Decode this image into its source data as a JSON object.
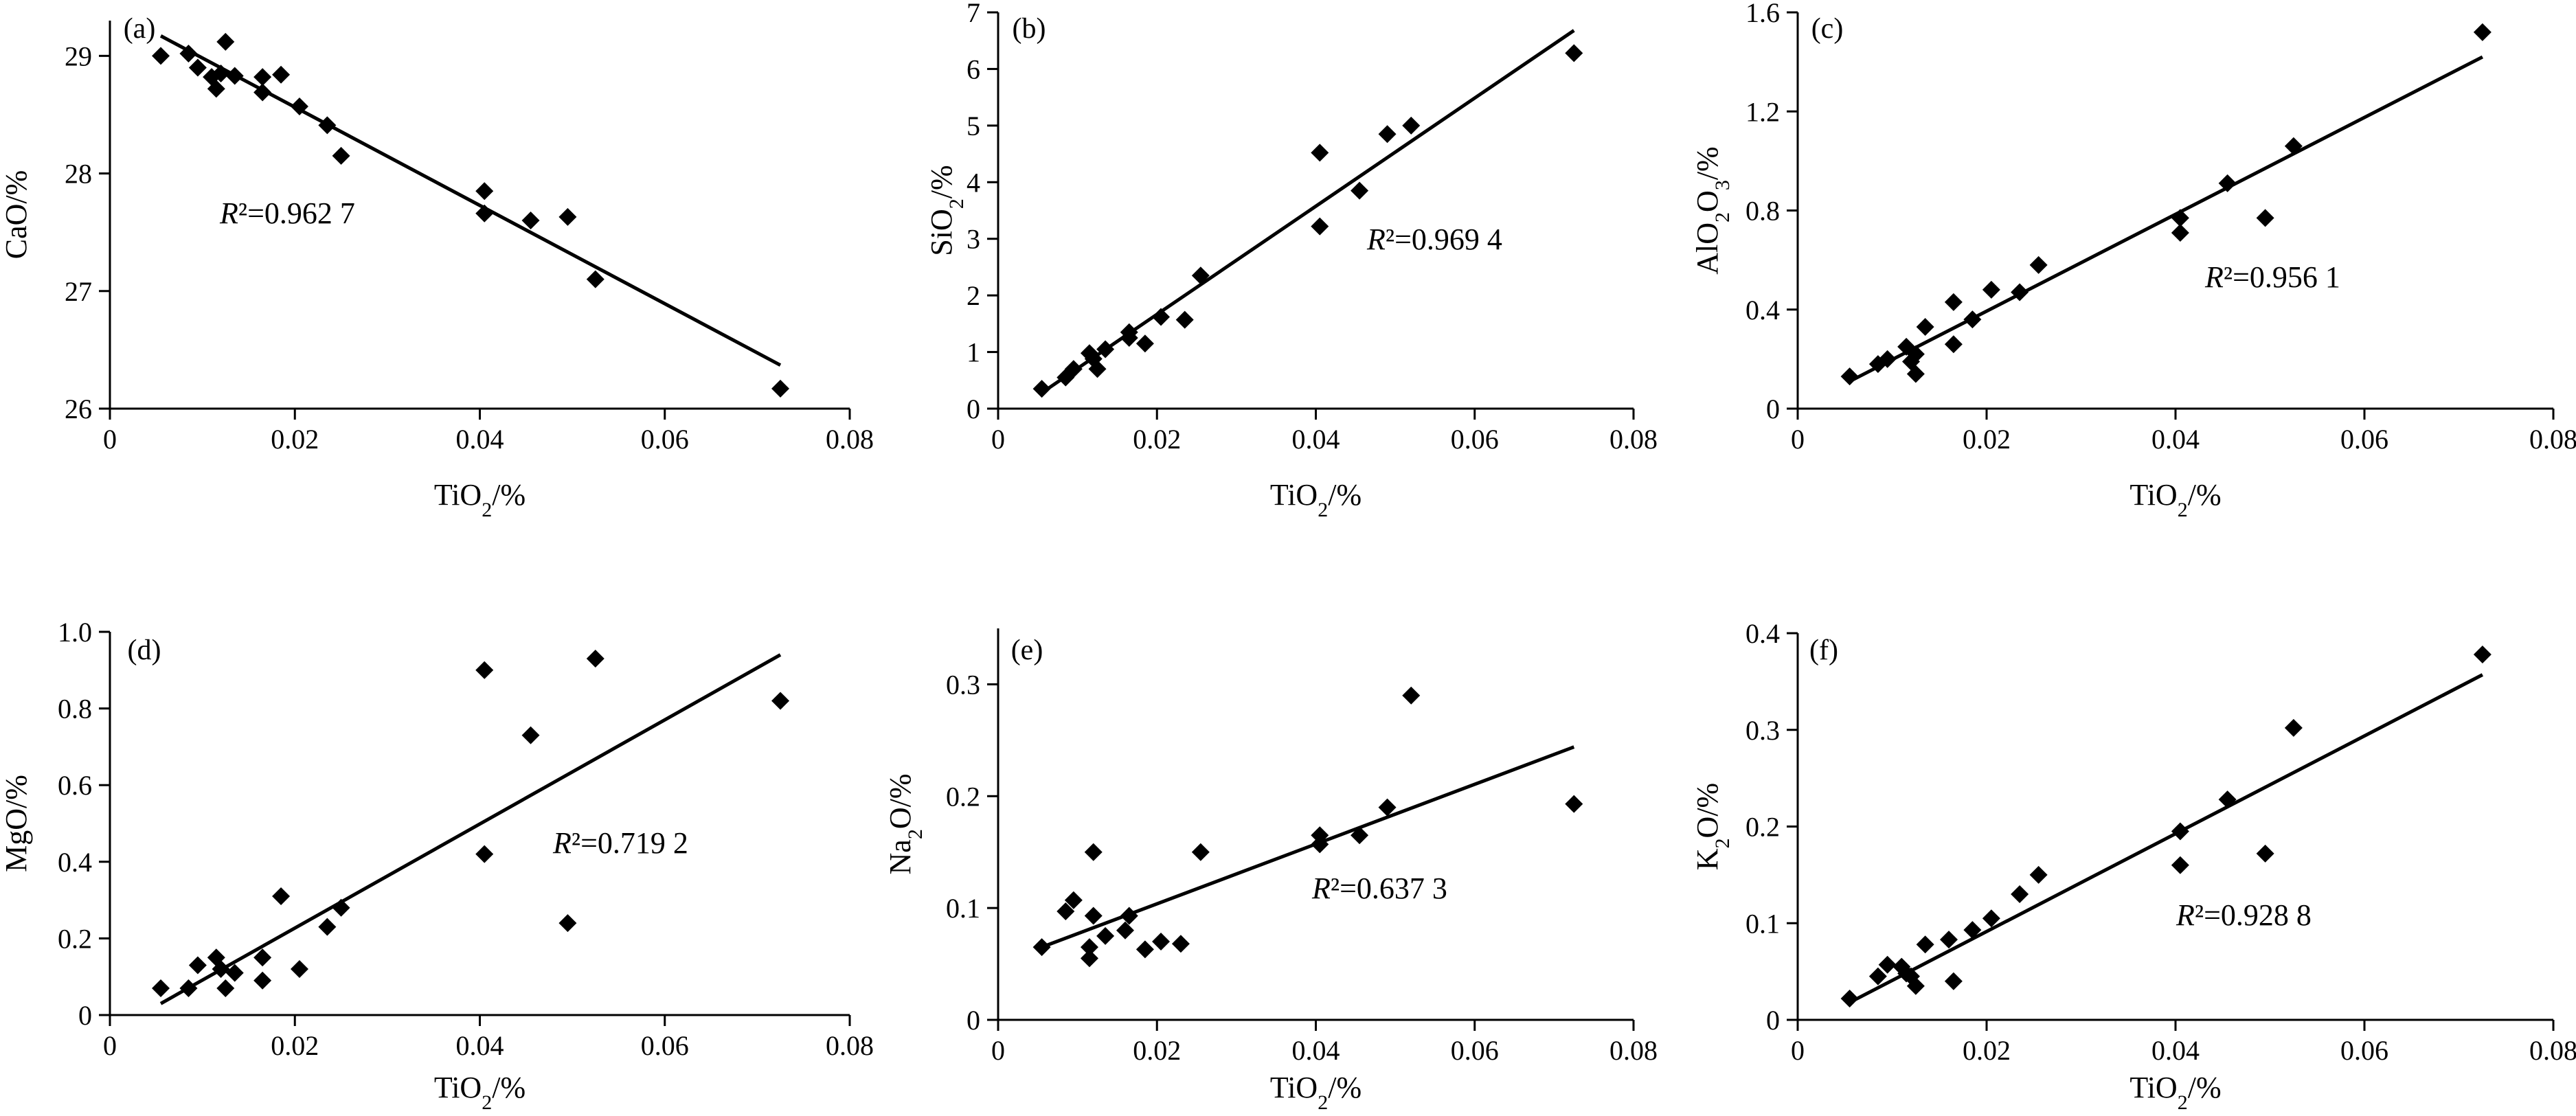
{
  "figure": {
    "panels": [
      {
        "id": "a",
        "label": "(a)",
        "ylabel_main": "CaO/%",
        "ylabel_sub": "",
        "ylabel_tail": "",
        "xlabel_main": "TiO",
        "xlabel_sub": "2",
        "xlabel_tail": "/%",
        "r2_label": "R²=0.962 7"
      },
      {
        "id": "b",
        "label": "(b)",
        "ylabel_main": "SiO",
        "ylabel_sub": "2",
        "ylabel_tail": "/%",
        "xlabel_main": "TiO",
        "xlabel_sub": "2",
        "xlabel_tail": "/%",
        "r2_label": "R²=0.969 4"
      },
      {
        "id": "c",
        "label": "(c)",
        "ylabel_main": "AlO",
        "ylabel_sub": "2",
        "ylabel_tail": "O",
        "ylabel_sub2": "3",
        "ylabel_tail2": "/%",
        "xlabel_main": "TiO",
        "xlabel_sub": "2",
        "xlabel_tail": "/%",
        "r2_label": "R²=0.956 1"
      },
      {
        "id": "d",
        "label": "(d)",
        "ylabel_main": "MgO/%",
        "ylabel_sub": "",
        "ylabel_tail": "",
        "xlabel_main": "TiO",
        "xlabel_sub": "2",
        "xlabel_tail": "/%",
        "r2_label": "R²=0.719 2"
      },
      {
        "id": "e",
        "label": "(e)",
        "ylabel_main": "Na",
        "ylabel_sub": "2",
        "ylabel_tail": "O/%",
        "xlabel_main": "TiO",
        "xlabel_sub": "2",
        "xlabel_tail": "/%",
        "r2_label": "R²=0.637 3"
      },
      {
        "id": "f",
        "label": "(f)",
        "ylabel_main": "K",
        "ylabel_sub": "2",
        "ylabel_tail": "O/%",
        "xlabel_main": "TiO",
        "xlabel_sub": "2",
        "xlabel_tail": "/%",
        "r2_label": "R²=0.928 8"
      }
    ]
  },
  "chart_data": [
    {
      "type": "scatter",
      "panel": "(a)",
      "xlabel": "TiO2/%",
      "ylabel": "CaO/%",
      "xlim": [
        0,
        0.08
      ],
      "ylim": [
        26,
        29.3
      ],
      "xticks": [
        0,
        0.02,
        0.04,
        0.06,
        0.08
      ],
      "xtick_labels": [
        "0",
        "0.02",
        "0.04",
        "0.06",
        "0.08"
      ],
      "yticks": [
        26,
        27,
        28,
        29
      ],
      "ytick_labels": [
        "26",
        "27",
        "28",
        "29"
      ],
      "annotation": "R²=0.962 7",
      "fit_line": [
        [
          0.0055,
          29.17
        ],
        [
          0.0725,
          26.37
        ]
      ],
      "points": [
        [
          0.0055,
          29.0
        ],
        [
          0.0085,
          29.02
        ],
        [
          0.0095,
          28.9
        ],
        [
          0.011,
          28.82
        ],
        [
          0.0115,
          28.72
        ],
        [
          0.012,
          28.85
        ],
        [
          0.0125,
          29.12
        ],
        [
          0.0135,
          28.83
        ],
        [
          0.0165,
          28.82
        ],
        [
          0.0165,
          28.69
        ],
        [
          0.0185,
          28.84
        ],
        [
          0.0205,
          28.57
        ],
        [
          0.0235,
          28.41
        ],
        [
          0.025,
          28.15
        ],
        [
          0.0405,
          27.85
        ],
        [
          0.0405,
          27.66
        ],
        [
          0.0455,
          27.6
        ],
        [
          0.0495,
          27.63
        ],
        [
          0.0525,
          27.1
        ],
        [
          0.0725,
          26.17
        ]
      ]
    },
    {
      "type": "scatter",
      "panel": "(b)",
      "xlabel": "TiO2/%",
      "ylabel": "SiO2/%",
      "xlim": [
        0,
        0.08
      ],
      "ylim": [
        0,
        7
      ],
      "xticks": [
        0,
        0.02,
        0.04,
        0.06,
        0.08
      ],
      "xtick_labels": [
        "0",
        "0.02",
        "0.04",
        "0.06",
        "0.08"
      ],
      "yticks": [
        0,
        1,
        2,
        3,
        4,
        5,
        6,
        7
      ],
      "ytick_labels": [
        "0",
        "1",
        "2",
        "3",
        "4",
        "5",
        "6",
        "7"
      ],
      "annotation": "R²=0.969 4",
      "fit_line": [
        [
          0.0055,
          0.28
        ],
        [
          0.0725,
          6.68
        ]
      ],
      "points": [
        [
          0.0055,
          0.35
        ],
        [
          0.0085,
          0.55
        ],
        [
          0.0095,
          0.7
        ],
        [
          0.0115,
          0.98
        ],
        [
          0.012,
          0.88
        ],
        [
          0.0125,
          0.7
        ],
        [
          0.0135,
          1.05
        ],
        [
          0.0165,
          1.25
        ],
        [
          0.0165,
          1.35
        ],
        [
          0.0185,
          1.15
        ],
        [
          0.0205,
          1.62
        ],
        [
          0.0235,
          1.57
        ],
        [
          0.0255,
          2.35
        ],
        [
          0.0405,
          4.52
        ],
        [
          0.0405,
          3.22
        ],
        [
          0.0455,
          3.85
        ],
        [
          0.049,
          4.85
        ],
        [
          0.052,
          5.0
        ],
        [
          0.0725,
          6.28
        ]
      ]
    },
    {
      "type": "scatter",
      "panel": "(c)",
      "xlabel": "TiO2/%",
      "ylabel": "AlO2O3/%",
      "xlim": [
        0,
        0.08
      ],
      "ylim": [
        0,
        1.6
      ],
      "xticks": [
        0,
        0.02,
        0.04,
        0.06,
        0.08
      ],
      "xtick_labels": [
        "0",
        "0.02",
        "0.04",
        "0.06",
        "0.08"
      ],
      "yticks": [
        0,
        0.4,
        0.8,
        1.2,
        1.6
      ],
      "ytick_labels": [
        "0",
        "0.4",
        "0.8",
        "1.2",
        "1.6"
      ],
      "annotation": "R²=0.956 1",
      "fit_line": [
        [
          0.0055,
          0.11
        ],
        [
          0.0725,
          1.42
        ]
      ],
      "points": [
        [
          0.0055,
          0.13
        ],
        [
          0.0085,
          0.18
        ],
        [
          0.0095,
          0.2
        ],
        [
          0.0115,
          0.25
        ],
        [
          0.012,
          0.19
        ],
        [
          0.0125,
          0.14
        ],
        [
          0.0125,
          0.22
        ],
        [
          0.0135,
          0.33
        ],
        [
          0.0165,
          0.43
        ],
        [
          0.0165,
          0.26
        ],
        [
          0.0185,
          0.36
        ],
        [
          0.0205,
          0.48
        ],
        [
          0.0235,
          0.47
        ],
        [
          0.0255,
          0.58
        ],
        [
          0.0405,
          0.77
        ],
        [
          0.0405,
          0.71
        ],
        [
          0.0455,
          0.91
        ],
        [
          0.0495,
          0.77
        ],
        [
          0.0525,
          1.06
        ],
        [
          0.0725,
          1.52
        ]
      ]
    },
    {
      "type": "scatter",
      "panel": "(d)",
      "xlabel": "TiO2/%",
      "ylabel": "MgO/%",
      "xlim": [
        0,
        0.08
      ],
      "ylim": [
        0,
        1.0
      ],
      "xticks": [
        0,
        0.02,
        0.04,
        0.06,
        0.08
      ],
      "xtick_labels": [
        "0",
        "0.02",
        "0.04",
        "0.06",
        "0.08"
      ],
      "yticks": [
        0,
        0.2,
        0.4,
        0.6,
        0.8,
        1.0
      ],
      "ytick_labels": [
        "0",
        "0.2",
        "0.4",
        "0.6",
        "0.8",
        "1.0"
      ],
      "annotation": "R²=0.719 2",
      "fit_line": [
        [
          0.0055,
          0.03
        ],
        [
          0.0725,
          0.94
        ]
      ],
      "points": [
        [
          0.0055,
          0.07
        ],
        [
          0.0085,
          0.07
        ],
        [
          0.0095,
          0.13
        ],
        [
          0.0115,
          0.15
        ],
        [
          0.012,
          0.12
        ],
        [
          0.0125,
          0.07
        ],
        [
          0.0135,
          0.11
        ],
        [
          0.0165,
          0.15
        ],
        [
          0.0165,
          0.09
        ],
        [
          0.0185,
          0.31
        ],
        [
          0.0205,
          0.12
        ],
        [
          0.0235,
          0.23
        ],
        [
          0.025,
          0.28
        ],
        [
          0.0405,
          0.9
        ],
        [
          0.0405,
          0.42
        ],
        [
          0.0455,
          0.73
        ],
        [
          0.0495,
          0.24
        ],
        [
          0.0525,
          0.93
        ],
        [
          0.0725,
          0.82
        ]
      ]
    },
    {
      "type": "scatter",
      "panel": "(e)",
      "xlabel": "TiO2/%",
      "ylabel": "Na2O/%",
      "xlim": [
        0,
        0.08
      ],
      "ylim": [
        0,
        0.35
      ],
      "xticks": [
        0,
        0.02,
        0.04,
        0.06,
        0.08
      ],
      "xtick_labels": [
        "0",
        "0.02",
        "0.04",
        "0.06",
        "0.08"
      ],
      "yticks": [
        0,
        0.1,
        0.2,
        0.3
      ],
      "ytick_labels": [
        "0",
        "0.1",
        "0.2",
        "0.3"
      ],
      "annotation": "R²=0.637 3",
      "fit_line": [
        [
          0.0055,
          0.065
        ],
        [
          0.0725,
          0.244
        ]
      ],
      "points": [
        [
          0.0055,
          0.065
        ],
        [
          0.0085,
          0.097
        ],
        [
          0.0095,
          0.107
        ],
        [
          0.0115,
          0.065
        ],
        [
          0.0115,
          0.055
        ],
        [
          0.012,
          0.15
        ],
        [
          0.012,
          0.093
        ],
        [
          0.0135,
          0.075
        ],
        [
          0.016,
          0.08
        ],
        [
          0.0165,
          0.093
        ],
        [
          0.0185,
          0.063
        ],
        [
          0.0205,
          0.07
        ],
        [
          0.023,
          0.068
        ],
        [
          0.0255,
          0.15
        ],
        [
          0.0405,
          0.165
        ],
        [
          0.0405,
          0.157
        ],
        [
          0.0455,
          0.165
        ],
        [
          0.049,
          0.19
        ],
        [
          0.052,
          0.29
        ],
        [
          0.0725,
          0.193
        ]
      ]
    },
    {
      "type": "scatter",
      "panel": "(f)",
      "xlabel": "TiO2/%",
      "ylabel": "K2O/%",
      "xlim": [
        0,
        0.08
      ],
      "ylim": [
        0,
        0.4
      ],
      "xticks": [
        0,
        0.02,
        0.04,
        0.06,
        0.08
      ],
      "xtick_labels": [
        "0",
        "0.02",
        "0.04",
        "0.06",
        "0.08"
      ],
      "yticks": [
        0,
        0.1,
        0.2,
        0.3,
        0.4
      ],
      "ytick_labels": [
        "0",
        "0.1",
        "0.2",
        "0.3",
        "0.4"
      ],
      "annotation": "R²=0.928 8",
      "fit_line": [
        [
          0.0055,
          0.018
        ],
        [
          0.0725,
          0.357
        ]
      ],
      "points": [
        [
          0.0055,
          0.022
        ],
        [
          0.0085,
          0.045
        ],
        [
          0.0095,
          0.057
        ],
        [
          0.011,
          0.055
        ],
        [
          0.0115,
          0.048
        ],
        [
          0.012,
          0.045
        ],
        [
          0.0125,
          0.035
        ],
        [
          0.0135,
          0.078
        ],
        [
          0.016,
          0.083
        ],
        [
          0.0165,
          0.04
        ],
        [
          0.0185,
          0.093
        ],
        [
          0.0205,
          0.105
        ],
        [
          0.0235,
          0.13
        ],
        [
          0.0255,
          0.15
        ],
        [
          0.0405,
          0.195
        ],
        [
          0.0405,
          0.16
        ],
        [
          0.0455,
          0.228
        ],
        [
          0.0495,
          0.172
        ],
        [
          0.0525,
          0.302
        ],
        [
          0.0725,
          0.378
        ]
      ]
    }
  ]
}
